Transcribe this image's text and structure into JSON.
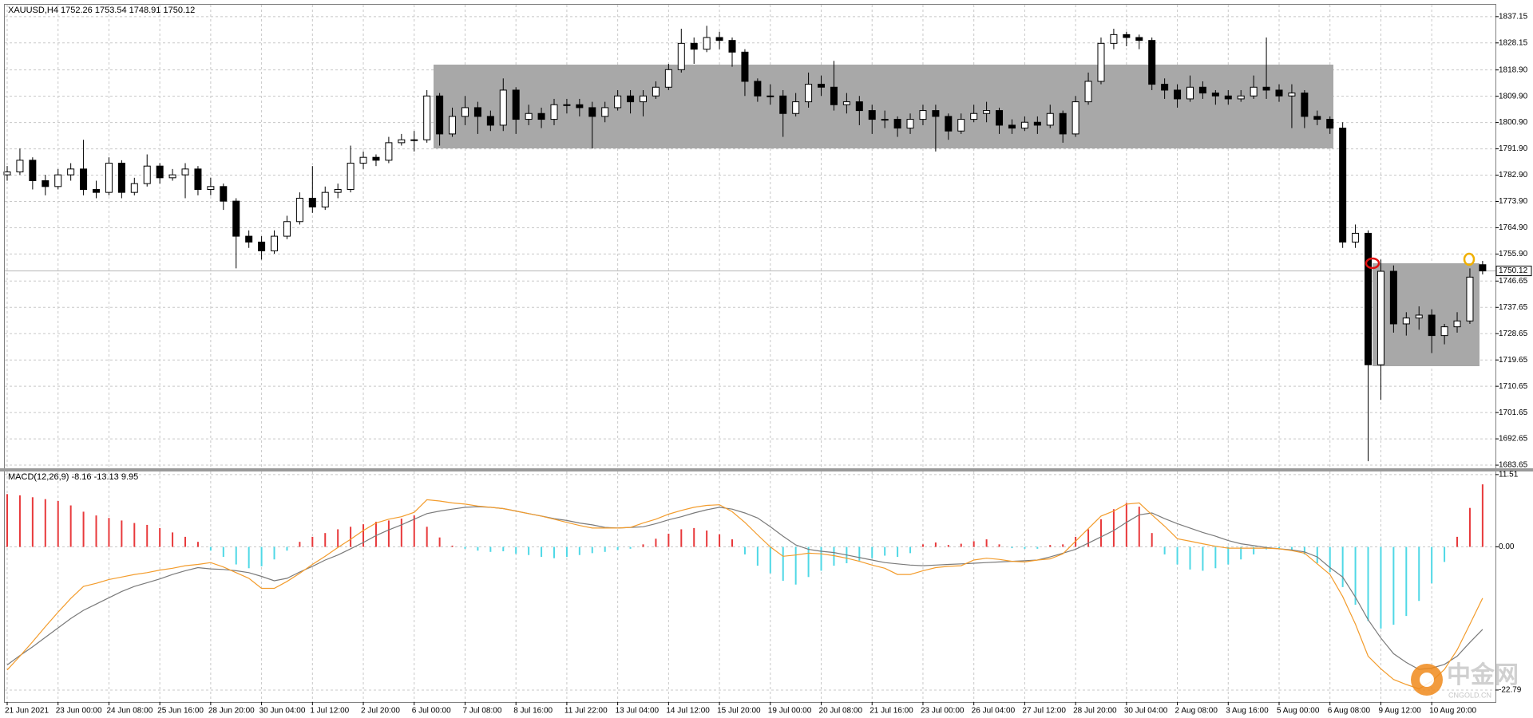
{
  "chart_data": [
    {
      "type": "candlestick",
      "title": "XAUUSD,H4  1752.26 1753.54 1748.91 1750.12",
      "up_color": "#ffffff",
      "down_color": "#000000",
      "wick_color": "#000000",
      "ylim": [
        1682.3,
        1841.2
      ],
      "yticks": [
        1837.15,
        1828.15,
        {
          "value": 1818.9,
          "label": "1818.90"
        },
        {
          "value": 1809.9,
          "label": "1809.90"
        },
        {
          "value": 1800.9,
          "label": "1800.90"
        },
        {
          "value": 1791.9,
          "label": "1791.90"
        },
        {
          "value": 1782.9,
          "label": "1782.90"
        },
        {
          "value": 1773.9,
          "label": "1773.90"
        },
        {
          "value": 1764.9,
          "label": "1764.90"
        },
        {
          "value": 1755.9,
          "label": "1755.90"
        },
        1746.65,
        1737.65,
        1728.65,
        1719.65,
        1710.65,
        1701.65,
        1692.65,
        1683.65
      ],
      "grid": true,
      "categories": [
        "21 Jun 2021",
        null,
        null,
        null,
        "23 Jun 00:00",
        null,
        null,
        null,
        "24 Jun 08:00",
        null,
        null,
        null,
        "25 Jun 16:00",
        null,
        null,
        null,
        "28 Jun 20:00",
        null,
        null,
        null,
        "30 Jun 04:00",
        null,
        null,
        null,
        "1 Jul 12:00",
        null,
        null,
        null,
        "2 Jul 20:00",
        null,
        null,
        null,
        "6 Jul 00:00",
        null,
        null,
        null,
        "7 Jul 08:00",
        null,
        null,
        null,
        "8 Jul 16:00",
        null,
        null,
        null,
        "11 Jul 22:00",
        null,
        null,
        null,
        "13 Jul 04:00",
        null,
        null,
        null,
        "14 Jul 12:00",
        null,
        null,
        null,
        "15 Jul 20:00",
        null,
        null,
        null,
        "19 Jul 00:00",
        null,
        null,
        null,
        "20 Jul 08:00",
        null,
        null,
        null,
        "21 Jul 16:00",
        null,
        null,
        null,
        "23 Jul 00:00",
        null,
        null,
        null,
        "26 Jul 04:00",
        null,
        null,
        null,
        "27 Jul 12:00",
        null,
        null,
        null,
        "28 Jul 20:00",
        null,
        null,
        null,
        "30 Jul 04:00",
        null,
        null,
        null,
        "2 Aug 08:00",
        null,
        null,
        null,
        "3 Aug 16:00",
        null,
        null,
        null,
        "5 Aug 00:00",
        null,
        null,
        null,
        "6 Aug 08:00",
        null,
        null,
        null,
        "9 Aug 12:00",
        null,
        null,
        null,
        "10 Aug 20:00",
        null,
        null,
        null,
        null
      ],
      "ohlc": [
        [
          1783,
          1786,
          1781,
          1784
        ],
        [
          1784,
          1792,
          1783,
          1788
        ],
        [
          1788,
          1789,
          1778,
          1781
        ],
        [
          1781,
          1783,
          1776,
          1779
        ],
        [
          1779,
          1785,
          1778,
          1783
        ],
        [
          1783,
          1787,
          1781,
          1785
        ],
        [
          1785,
          1795,
          1776,
          1778
        ],
        [
          1778,
          1781,
          1775,
          1777
        ],
        [
          1777,
          1789,
          1776,
          1787
        ],
        [
          1787,
          1788,
          1775,
          1777
        ],
        [
          1777,
          1782,
          1776,
          1780
        ],
        [
          1780,
          1790,
          1779,
          1786
        ],
        [
          1786,
          1787,
          1780,
          1782
        ],
        [
          1782,
          1785,
          1781,
          1783
        ],
        [
          1783,
          1787,
          1775,
          1785
        ],
        [
          1785,
          1786,
          1776,
          1778
        ],
        [
          1778,
          1782,
          1776,
          1779
        ],
        [
          1779,
          1780,
          1771,
          1774
        ],
        [
          1774,
          1775,
          1751,
          1762
        ],
        [
          1762,
          1764,
          1758,
          1760
        ],
        [
          1760,
          1762,
          1754,
          1757
        ],
        [
          1757,
          1764,
          1756,
          1762
        ],
        [
          1762,
          1769,
          1761,
          1767
        ],
        [
          1767,
          1777,
          1766,
          1775
        ],
        [
          1775,
          1786,
          1770,
          1772
        ],
        [
          1772,
          1779,
          1771,
          1777
        ],
        [
          1777,
          1780,
          1775,
          1778
        ],
        [
          1778,
          1793,
          1777,
          1787
        ],
        [
          1787,
          1791,
          1785,
          1789
        ],
        [
          1789,
          1790,
          1786,
          1788
        ],
        [
          1788,
          1796,
          1787,
          1794
        ],
        [
          1794,
          1797,
          1793,
          1795
        ],
        [
          1795,
          1798,
          1791,
          1795
        ],
        [
          1795,
          1812,
          1794,
          1810
        ],
        [
          1810,
          1811,
          1793,
          1797
        ],
        [
          1797,
          1806,
          1796,
          1803
        ],
        [
          1803,
          1810,
          1800,
          1806
        ],
        [
          1806,
          1808,
          1797,
          1803
        ],
        [
          1803,
          1805,
          1798,
          1800
        ],
        [
          1800,
          1816,
          1798,
          1812
        ],
        [
          1812,
          1813,
          1797,
          1802
        ],
        [
          1802,
          1807,
          1800,
          1804
        ],
        [
          1804,
          1806,
          1799,
          1802
        ],
        [
          1802,
          1809,
          1800,
          1807
        ],
        [
          1807,
          1809,
          1804,
          1807
        ],
        [
          1807,
          1809,
          1803,
          1806
        ],
        [
          1806,
          1808,
          1792,
          1803
        ],
        [
          1803,
          1808,
          1801,
          1806
        ],
        [
          1806,
          1812,
          1805,
          1810
        ],
        [
          1810,
          1812,
          1804,
          1808
        ],
        [
          1808,
          1812,
          1803,
          1810
        ],
        [
          1810,
          1815,
          1809,
          1813
        ],
        [
          1813,
          1821,
          1812,
          1819
        ],
        [
          1819,
          1833,
          1818,
          1828
        ],
        [
          1828,
          1830,
          1821,
          1826
        ],
        [
          1826,
          1834,
          1825,
          1830
        ],
        [
          1830,
          1832,
          1826,
          1829
        ],
        [
          1829,
          1830,
          1820,
          1825
        ],
        [
          1825,
          1826,
          1810,
          1815
        ],
        [
          1815,
          1816,
          1808,
          1810
        ],
        [
          1810,
          1814,
          1807,
          1810
        ],
        [
          1810,
          1812,
          1796,
          1804
        ],
        [
          1804,
          1811,
          1803,
          1808
        ],
        [
          1808,
          1818,
          1806,
          1814
        ],
        [
          1814,
          1817,
          1810,
          1813
        ],
        [
          1813,
          1822,
          1805,
          1807
        ],
        [
          1807,
          1811,
          1804,
          1808
        ],
        [
          1808,
          1810,
          1800,
          1805
        ],
        [
          1805,
          1807,
          1797,
          1802
        ],
        [
          1802,
          1805,
          1799,
          1802
        ],
        [
          1802,
          1803,
          1796,
          1799
        ],
        [
          1799,
          1804,
          1797,
          1802
        ],
        [
          1802,
          1807,
          1800,
          1805
        ],
        [
          1805,
          1807,
          1791,
          1803
        ],
        [
          1803,
          1804,
          1795,
          1798
        ],
        [
          1798,
          1804,
          1797,
          1802
        ],
        [
          1802,
          1807,
          1801,
          1804
        ],
        [
          1804,
          1808,
          1801,
          1805
        ],
        [
          1805,
          1806,
          1797,
          1800
        ],
        [
          1800,
          1802,
          1797,
          1799
        ],
        [
          1799,
          1803,
          1798,
          1801
        ],
        [
          1801,
          1803,
          1797,
          1800
        ],
        [
          1800,
          1807,
          1799,
          1804
        ],
        [
          1804,
          1805,
          1794,
          1797
        ],
        [
          1797,
          1810,
          1796,
          1808
        ],
        [
          1808,
          1818,
          1807,
          1815
        ],
        [
          1815,
          1830,
          1814,
          1828
        ],
        [
          1828,
          1833,
          1826,
          1831
        ],
        [
          1831,
          1832,
          1827,
          1830
        ],
        [
          1830,
          1831,
          1826,
          1829
        ],
        [
          1829,
          1830,
          1812,
          1814
        ],
        [
          1814,
          1816,
          1809,
          1812
        ],
        [
          1812,
          1814,
          1806,
          1809
        ],
        [
          1809,
          1817,
          1808,
          1813
        ],
        [
          1813,
          1815,
          1809,
          1811
        ],
        [
          1811,
          1812,
          1807,
          1810
        ],
        [
          1810,
          1812,
          1807,
          1809
        ],
        [
          1809,
          1812,
          1808,
          1810
        ],
        [
          1810,
          1817,
          1809,
          1813
        ],
        [
          1813,
          1830,
          1809,
          1812
        ],
        [
          1812,
          1814,
          1808,
          1810
        ],
        [
          1810,
          1814,
          1799,
          1811
        ],
        [
          1811,
          1812,
          1799,
          1803
        ],
        [
          1803,
          1805,
          1800,
          1802
        ],
        [
          1802,
          1803,
          1797,
          1799
        ],
        [
          1799,
          1801,
          1758,
          1760
        ],
        [
          1760,
          1766,
          1758,
          1763
        ],
        [
          1763,
          1764,
          1685,
          1718
        ],
        [
          1718,
          1754,
          1706,
          1750
        ],
        [
          1750,
          1752,
          1729,
          1732
        ],
        [
          1732,
          1736,
          1728,
          1734
        ],
        [
          1734,
          1738,
          1730,
          1735
        ],
        [
          1735,
          1737,
          1722,
          1728
        ],
        [
          1728,
          1732,
          1725,
          1731
        ],
        [
          1731,
          1736,
          1729,
          1733
        ],
        [
          1733,
          1751,
          1732,
          1748
        ],
        [
          1752.26,
          1753.54,
          1748.91,
          1750.12
        ]
      ]
    },
    {
      "type": "macd",
      "title": "MACD(12,26,9) -8.16 -13.13 9.95",
      "ylim": [
        -24.7,
        12.0
      ],
      "yticks": [
        11.51,
        {
          "value": 0,
          "label": "0.00"
        },
        -22.79
      ],
      "grid": true,
      "positive_color": "#e8393b",
      "negative_color": "#4fd8e6",
      "macd_color": "#f39c2c",
      "signal_color": "#7a7a7a",
      "histogram": [
        8.4,
        8.2,
        7.9,
        7.6,
        7.3,
        6.6,
        5.6,
        5.0,
        4.6,
        4.2,
        3.8,
        3.5,
        3.0,
        2.3,
        1.6,
        0.8,
        -0.6,
        -1.6,
        -2.8,
        -3.4,
        -3.1,
        -2.0,
        -0.6,
        0.8,
        1.6,
        2.2,
        2.8,
        3.2,
        3.6,
        4.0,
        4.2,
        4.5,
        5.0,
        3.2,
        1.5,
        0.2,
        -0.3,
        -0.6,
        -0.8,
        -0.7,
        -1.1,
        -1.3,
        -1.6,
        -1.8,
        -1.6,
        -1.3,
        -1.0,
        -0.8,
        -0.5,
        -0.3,
        0.4,
        1.3,
        2.1,
        2.8,
        3.0,
        2.6,
        2.0,
        1.2,
        -1.2,
        -3.0,
        -4.2,
        -5.4,
        -6.0,
        -4.8,
        -3.8,
        -3.0,
        -2.6,
        -2.2,
        -1.8,
        -1.4,
        -1.6,
        -1.0,
        0.4,
        0.7,
        0.3,
        0.5,
        0.9,
        1.2,
        0.4,
        -0.2,
        -0.3,
        -0.3,
        0.3,
        0.4,
        1.6,
        2.8,
        4.4,
        6.0,
        7.0,
        6.4,
        2.2,
        -1.2,
        -2.8,
        -3.6,
        -3.8,
        -3.4,
        -2.8,
        -2.0,
        -1.2,
        -0.4,
        -0.2,
        -0.6,
        -1.2,
        -2.6,
        -4.0,
        -6.4,
        -9.2,
        -11.8,
        -13.0,
        -12.4,
        -11.0,
        -8.6,
        -5.8,
        -2.4,
        1.6,
        6.2,
        9.95
      ],
      "macd": [
        -19.6,
        -17.4,
        -15.1,
        -12.7,
        -10.4,
        -8.2,
        -6.3,
        -5.8,
        -5.2,
        -4.8,
        -4.4,
        -4.1,
        -3.7,
        -3.4,
        -3.0,
        -2.8,
        -2.5,
        -3.2,
        -4.1,
        -5.0,
        -6.6,
        -6.6,
        -5.5,
        -4.2,
        -2.8,
        -1.5,
        -0.1,
        1.2,
        2.6,
        3.8,
        4.4,
        4.8,
        5.5,
        7.5,
        7.3,
        7.0,
        6.8,
        6.5,
        6.3,
        6.1,
        5.7,
        5.3,
        4.9,
        4.4,
        3.9,
        3.4,
        3.0,
        3.0,
        3.0,
        3.1,
        3.8,
        4.4,
        5.2,
        5.8,
        6.3,
        6.6,
        6.7,
        5.6,
        3.9,
        1.9,
        0.0,
        -1.5,
        -1.3,
        -1.0,
        -1.1,
        -1.4,
        -1.8,
        -2.3,
        -2.9,
        -3.4,
        -4.4,
        -4.4,
        -3.8,
        -3.3,
        -3.1,
        -3.0,
        -2.1,
        -1.8,
        -2.0,
        -2.3,
        -2.4,
        -2.1,
        -1.9,
        -1.1,
        0.9,
        2.9,
        4.9,
        5.7,
        6.8,
        7.0,
        5.1,
        3.3,
        1.3,
        0.9,
        0.5,
        0.1,
        -0.2,
        -0.2,
        -0.2,
        -0.2,
        -0.3,
        -0.6,
        -1.0,
        -2.7,
        -4.4,
        -7.9,
        -12.3,
        -17.4,
        -19.4,
        -21.1,
        -21.9,
        -22.6,
        -21.4,
        -19.5,
        -16.4,
        -12.3,
        -8.16
      ],
      "signal": [
        -18.8,
        -17.3,
        -15.9,
        -14.4,
        -12.9,
        -11.4,
        -10.1,
        -9.1,
        -8.1,
        -7.1,
        -6.3,
        -5.7,
        -5.1,
        -4.4,
        -3.8,
        -3.3,
        -3.5,
        -3.6,
        -3.8,
        -4.1,
        -4.7,
        -5.4,
        -5.0,
        -4.0,
        -3.1,
        -2.1,
        -1.3,
        -0.3,
        0.7,
        1.8,
        2.7,
        3.5,
        4.4,
        5.3,
        5.7,
        6.0,
        6.3,
        6.4,
        6.3,
        6.1,
        5.7,
        5.3,
        4.9,
        4.5,
        4.2,
        3.8,
        3.5,
        3.1,
        3.0,
        3.1,
        3.2,
        3.7,
        4.3,
        4.8,
        5.4,
        5.9,
        6.3,
        6.0,
        5.4,
        4.6,
        3.2,
        1.7,
        0.3,
        -0.4,
        -0.7,
        -0.9,
        -1.3,
        -1.7,
        -2.1,
        -2.5,
        -2.7,
        -2.9,
        -3.0,
        -2.9,
        -2.8,
        -2.7,
        -2.6,
        -2.5,
        -2.4,
        -2.3,
        -2.2,
        -2.1,
        -1.6,
        -1.0,
        -0.4,
        0.6,
        1.6,
        2.6,
        3.9,
        5.1,
        5.4,
        4.5,
        3.7,
        3.0,
        2.3,
        1.7,
        1.0,
        0.5,
        0.2,
        -0.1,
        -0.3,
        -0.5,
        -0.8,
        -1.6,
        -3.3,
        -4.8,
        -8.0,
        -11.6,
        -14.5,
        -17.0,
        -18.4,
        -19.5,
        -19.3,
        -18.7,
        -17.4,
        -15.2,
        -13.13
      ]
    }
  ],
  "watermark": {
    "name": "中金网",
    "site": "CNGOLD.CN"
  }
}
